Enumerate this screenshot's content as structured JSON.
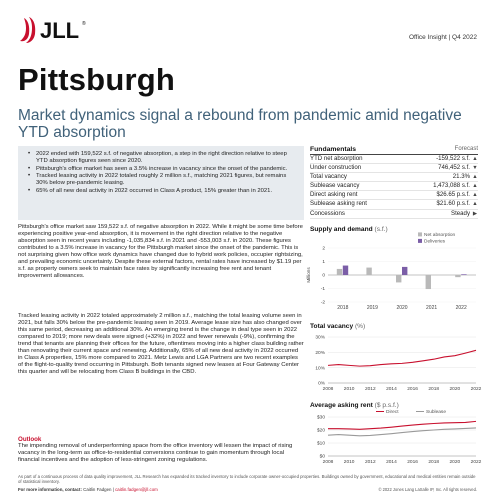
{
  "brand": {
    "name": "JLL",
    "trademark": "®",
    "colors": {
      "red": "#c8102e",
      "headline_blue": "#41627a",
      "purple": "#7b5ea7",
      "gray_bar": "#b9b9b9"
    }
  },
  "header": {
    "report_tag": "Office Insight  |  Q4 2022"
  },
  "title": {
    "city": "Pittsburgh",
    "headline": "Market dynamics signal a rebound from pandemic amid negative YTD absorption"
  },
  "summary": {
    "bullets": [
      "2022 ended with 159,522 s.f. of negative absorption, a step in the right direction relative to steep YTD absorption figures seen since 2020.",
      "Pittsburgh's office market has seen a 3.5% increase in vacancy since the onset of the pandemic.",
      "Tracked leasing activity in 2022 totaled roughly 2 million s.f., matching 2021 figures, but remains 30% below pre-pandemic leasing.",
      "65% of all new deal activity in 2022 occurred in Class A product, 15% greater than in 2021."
    ]
  },
  "body": {
    "paragraph1": "Pittsburgh's office market saw 159,522 s.f. of negative absorption in 2022. While it might be some time before experiencing positive year-end absorption, it is movement in the right direction relative to the negative absorption seen in recent years including -1,035,834 s.f. in 2021 and -553,003 s.f. in 2020. These figures contributed to a 3.5% increase in vacancy for the Pittsburgh market since the onset of the pandemic. This is not surprising given how office work dynamics have changed due to hybrid work policies, occupier rightsizing, and prevailing economic uncertainty. Despite these external factors, rental rates have increased by $1.19 per s.f. as property owners seek to maintain face rates by significantly increasing free rent and tenant improvement allowances.",
    "paragraph2": "Tracked leasing activity in 2022 totaled approximately 2 million s.f., matching the total leasing volume seen in 2021, but falls 30% below the pre-pandemic leasing seen in 2019. Average lease size has also changed over this same period, decreasing an additional 30%. An emerging trend is the change in deal type seen in 2022 compared to 2019; more new deals were signed (+32%) in 2022 and fewer renewals (-9%), confirming the trend that tenants are planning their offices for the future, oftentimes moving into a higher class building rather than renovating their current space and renewing. Additionally, 65% of all new deal activity in 2022 occurred in Class A properties, 15% more compared to 2021. Metz Lewis and LGA Partners are two recent examples of the flight-to-quality trend occurring in Pittsburgh. Both tenants signed new leases at Four Gateway Center this quarter and will be relocating from Class B buildings in the CBD.",
    "outlook_title": "Outlook",
    "outlook_text": "The impending removal of underperforming space from the office inventory will lessen the impact of rising vacancy in the long-term as office-to-residential conversions continue to gain momentum through local financial incentives and the adoption of less-stringent zoning regulations."
  },
  "fundamentals": {
    "title": "Fundamentals",
    "forecast_label": "Forecast",
    "rows": [
      {
        "label": "YTD net absorption",
        "value": "-159,522 s.f.",
        "arrow_icon": "arrow-up-icon",
        "arrow": "▲"
      },
      {
        "label": "Under construction",
        "value": "746,452 s.f.",
        "arrow_icon": "arrow-down-icon",
        "arrow": "▼"
      },
      {
        "label": "Total vacancy",
        "value": "21.3%",
        "arrow_icon": "arrow-up-icon",
        "arrow": "▲"
      },
      {
        "label": "Sublease vacancy",
        "value": "1,473,088 s.f.",
        "arrow_icon": "arrow-up-icon",
        "arrow": "▲"
      },
      {
        "label": "Direct asking rent",
        "value": "$26.65 p.s.f.",
        "arrow_icon": "arrow-up-icon",
        "arrow": "▲"
      },
      {
        "label": "Sublease asking rent",
        "value": "$21.60 p.s.f.",
        "arrow_icon": "arrow-up-icon",
        "arrow": "▲"
      },
      {
        "label": "Concessions",
        "value": "Steady",
        "arrow_icon": "arrow-right-icon",
        "arrow": "▶"
      }
    ]
  },
  "chart_data": [
    {
      "type": "bar",
      "title": "Supply and demand",
      "unit": "(s.f.)",
      "ylabel": "Millions",
      "ylim": [
        -2,
        2
      ],
      "yticks": [
        -2,
        -1,
        0,
        1,
        2
      ],
      "categories": [
        "2018",
        "2019",
        "2020",
        "2021",
        "2022"
      ],
      "series": [
        {
          "name": "Net absorption",
          "color": "#b9b9b9",
          "values": [
            0.45,
            0.55,
            -0.55,
            -1.04,
            -0.16
          ]
        },
        {
          "name": "Deliveries",
          "color": "#7b5ea7",
          "values": [
            0.7,
            0.0,
            0.6,
            0.0,
            0.05
          ]
        }
      ],
      "legend": "top-right"
    },
    {
      "type": "line",
      "title": "Total vacancy",
      "unit": "(%)",
      "ylim": [
        0,
        30
      ],
      "yticks": [
        "0%",
        "10%",
        "20%",
        "30%"
      ],
      "xticks": [
        "2008",
        "2010",
        "2012",
        "2014",
        "2016",
        "2018",
        "2020",
        "2022"
      ],
      "x": [
        2008,
        2009,
        2010,
        2011,
        2012,
        2013,
        2014,
        2015,
        2016,
        2017,
        2018,
        2019,
        2020,
        2021,
        2022
      ],
      "series": [
        {
          "name": "Total vacancy",
          "color": "#c8102e",
          "values": [
            11.5,
            12.0,
            11.5,
            11.0,
            11.3,
            12.0,
            12.5,
            12.8,
            13.5,
            14.5,
            15.5,
            17.0,
            17.8,
            19.5,
            21.3
          ]
        }
      ]
    },
    {
      "type": "line",
      "title": "Average asking rent",
      "unit": "($ p.s.f.)",
      "ylim": [
        0,
        30
      ],
      "yticks": [
        "$0",
        "$10",
        "$20",
        "$30"
      ],
      "xticks": [
        "2008",
        "2010",
        "2012",
        "2014",
        "2016",
        "2018",
        "2020",
        "2022"
      ],
      "x": [
        2008,
        2009,
        2010,
        2011,
        2012,
        2013,
        2014,
        2015,
        2016,
        2017,
        2018,
        2019,
        2020,
        2021,
        2022
      ],
      "series": [
        {
          "name": "Direct",
          "color": "#c8102e",
          "values": [
            21.0,
            21.0,
            20.8,
            20.5,
            21.0,
            21.5,
            22.2,
            23.0,
            23.8,
            24.5,
            25.0,
            25.4,
            25.6,
            25.8,
            26.65
          ]
        },
        {
          "name": "Sublease",
          "color": "#9a9a9a",
          "values": [
            16.0,
            16.5,
            16.0,
            15.5,
            15.8,
            16.5,
            17.2,
            18.0,
            18.8,
            19.5,
            20.0,
            20.5,
            20.8,
            21.2,
            21.6
          ]
        }
      ],
      "legend": "top"
    }
  ],
  "footer": {
    "methodology": "As part of a continuous process of data quality improvement, JLL Research has expanded its tracked inventory to include corporate owner-occupied properties. Buildings owned by government, educational and medical entities remain outside of statistical inventory.",
    "contact_label": "For more information, contact:",
    "contact_name": "Caitlin Fadgen",
    "contact_sep": " | ",
    "contact_email": "caitlin.fadgen@jll.com",
    "copyright": "© 2022 Jones Lang LaSalle IP, Inc. All rights reserved."
  }
}
